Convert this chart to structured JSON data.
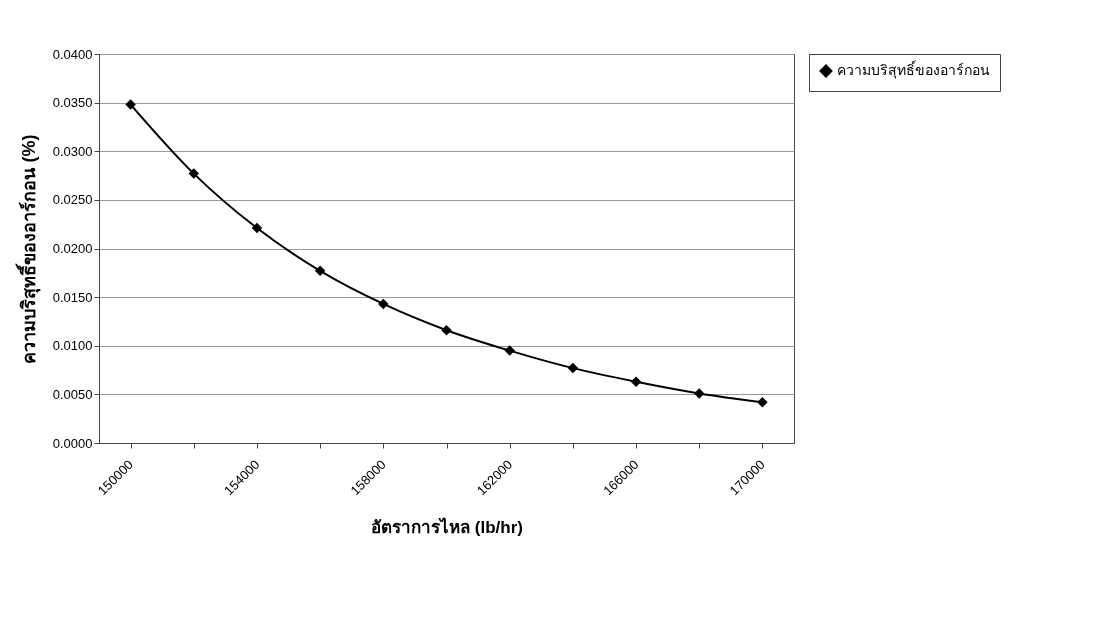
{
  "chart_data": {
    "type": "line",
    "xlabel": "อัตราการไหล (lb/hr)",
    "ylabel": "ความบริสุทธิ์ของอาร์กอน (%)",
    "categories": [
      "150000",
      null,
      "154000",
      null,
      "158000",
      null,
      "162000",
      null,
      "166000",
      null,
      "170000"
    ],
    "series": [
      {
        "name": "ความบริสุทธิ์ของอาร์กอน",
        "color": "#000000",
        "values": [
          0.0348,
          0.0277,
          0.0221,
          0.0177,
          0.0143,
          0.0116,
          0.0095,
          0.0077,
          0.0063,
          0.0051,
          0.0042
        ]
      }
    ],
    "ylim": [
      0,
      0.04
    ],
    "yticks": [
      {
        "value": 0,
        "label": "0.0000"
      },
      {
        "value": 0.005,
        "label": "0.0050"
      },
      {
        "value": 0.01,
        "label": "0.0100"
      },
      {
        "value": 0.015,
        "label": "0.0150"
      },
      {
        "value": 0.02,
        "label": "0.0200"
      },
      {
        "value": 0.025,
        "label": "0.0250"
      },
      {
        "value": 0.03,
        "label": "0.0300"
      },
      {
        "value": 0.035,
        "label": "0.0350"
      },
      {
        "value": 0.04,
        "label": "0.0400"
      }
    ],
    "grid": "y",
    "legend": "right",
    "marker": "diamond",
    "line_style": "solid"
  }
}
